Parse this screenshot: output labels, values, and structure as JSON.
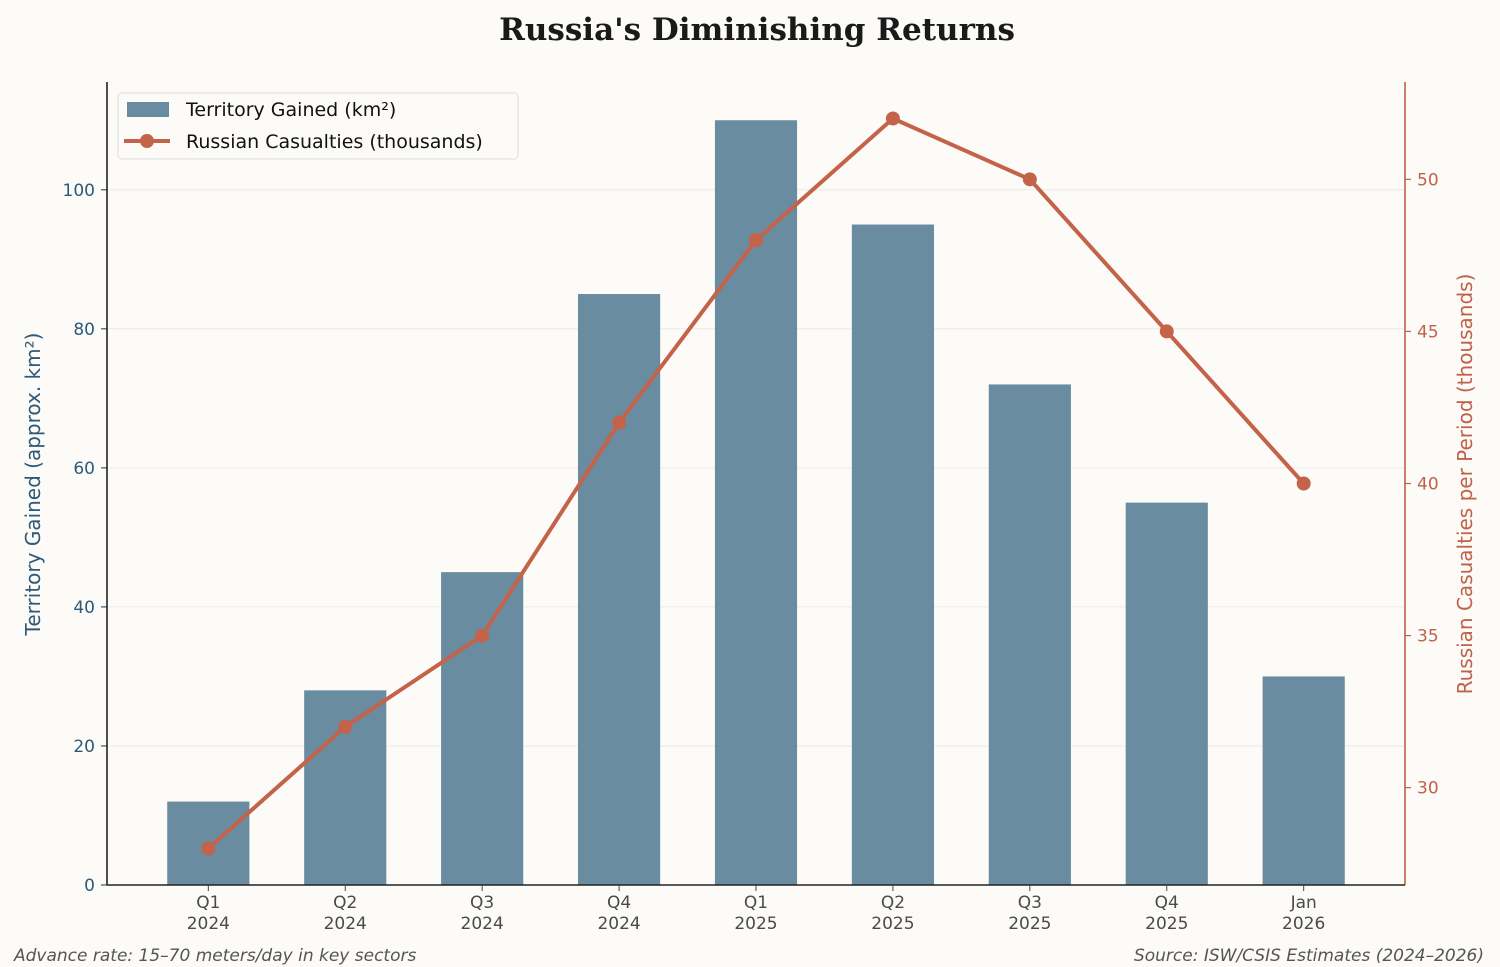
{
  "chart_data": {
    "type": "bar+line",
    "title": "Russia's Diminishing Returns",
    "categories": [
      [
        "Q1",
        "2024"
      ],
      [
        "Q2",
        "2024"
      ],
      [
        "Q3",
        "2024"
      ],
      [
        "Q4",
        "2024"
      ],
      [
        "Q1",
        "2025"
      ],
      [
        "Q2",
        "2025"
      ],
      [
        "Q3",
        "2025"
      ],
      [
        "Q4",
        "2025"
      ],
      [
        "Jan",
        "2026"
      ]
    ],
    "series": [
      {
        "name": "Territory Gained (km²)",
        "type": "bar",
        "axis": "left",
        "values": [
          12,
          28,
          45,
          85,
          110,
          95,
          72,
          55,
          30
        ],
        "color": "#6a8ca0"
      },
      {
        "name": "Russian Casualties (thousands)",
        "type": "line",
        "axis": "right",
        "values": [
          28,
          32,
          35,
          42,
          48,
          52,
          50,
          45,
          40
        ],
        "color": "#c4634a"
      }
    ],
    "ylabel_left": "Territory Gained (approx. km²)",
    "ylabel_right": "Russian Casualties per Period (thousands)",
    "ylim_left": [
      0,
      115.5
    ],
    "ylim_right": [
      26.8,
      53.2
    ],
    "yticks_left": [
      0,
      20,
      40,
      60,
      80,
      100
    ],
    "yticks_right": [
      30,
      35,
      40,
      45,
      50
    ],
    "grid": true,
    "legend": "upper-left",
    "left_axis_color": "#2e5a7a",
    "right_axis_color": "#c0614a",
    "annotations": {
      "left_note": "Advance rate: 15–70 meters/day in key sectors",
      "source": "Source: ISW/CSIS Estimates (2024–2026)"
    }
  }
}
